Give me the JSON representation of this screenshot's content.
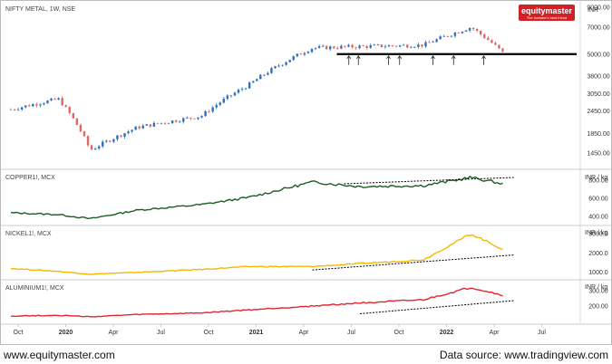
{
  "branding": {
    "logo_text": "equitymaster",
    "tagline": "The investor's best friend",
    "footer_left": "www.equitymaster.com",
    "footer_right": "Data source: www.tradingview.com",
    "logo_color": "#d32027"
  },
  "chart_data": [
    {
      "type": "candlestick",
      "title": "NIFTY METAL, 1W, NSE",
      "unit": "INR",
      "y_ticks": [
        1450,
        1850,
        2450,
        3050,
        3800,
        5000,
        7000,
        9000
      ],
      "support_level": 5000,
      "touch_points_count": 7,
      "x_labels": [
        "Oct",
        "2020",
        "Apr",
        "Jul",
        "Oct",
        "2021",
        "Apr",
        "Jul",
        "Oct",
        "2022",
        "Apr",
        "Jul"
      ],
      "approx_trend": {
        "dates": [
          "2019-10",
          "2020-01",
          "2020-03",
          "2020-06",
          "2020-10",
          "2021-01",
          "2021-05",
          "2021-08",
          "2021-12",
          "2022-03",
          "2022-05"
        ],
        "close": [
          2500,
          2850,
          1500,
          2000,
          2300,
          3400,
          5400,
          5500,
          5600,
          7000,
          5100
        ]
      },
      "colors": {
        "up": "#2f6fbd",
        "down": "#e06666"
      }
    },
    {
      "type": "line",
      "title": "COPPER1!, MCX",
      "unit": "INR / kg",
      "y_ticks": [
        400,
        600,
        800
      ],
      "color": "#1b5e20",
      "x": [
        "2019-10",
        "2020-01",
        "2020-03",
        "2020-06",
        "2020-10",
        "2021-01",
        "2021-05",
        "2021-08",
        "2021-12",
        "2022-03",
        "2022-05"
      ],
      "y": [
        440,
        420,
        375,
        470,
        530,
        610,
        780,
        730,
        740,
        830,
        760
      ]
    },
    {
      "type": "line",
      "title": "NICKEL1!, MCX",
      "unit": "INR / kg",
      "y_ticks": [
        1000,
        2000,
        3000
      ],
      "color": "#f5b800",
      "x": [
        "2019-10",
        "2020-01",
        "2020-03",
        "2020-06",
        "2020-10",
        "2021-01",
        "2021-05",
        "2021-08",
        "2021-12",
        "2022-03",
        "2022-05"
      ],
      "y": [
        1200,
        1050,
        900,
        1000,
        1150,
        1300,
        1300,
        1450,
        1650,
        3000,
        2200
      ]
    },
    {
      "type": "line",
      "title": "ALUMINIUM1!, MCX",
      "unit": "INR / kg",
      "y_ticks": [
        200,
        300
      ],
      "color": "#e0262f",
      "x": [
        "2019-10",
        "2020-01",
        "2020-03",
        "2020-06",
        "2020-10",
        "2021-01",
        "2021-05",
        "2021-08",
        "2021-12",
        "2022-03",
        "2022-05"
      ],
      "y": [
        135,
        140,
        130,
        145,
        155,
        175,
        200,
        220,
        240,
        320,
        270
      ]
    }
  ]
}
